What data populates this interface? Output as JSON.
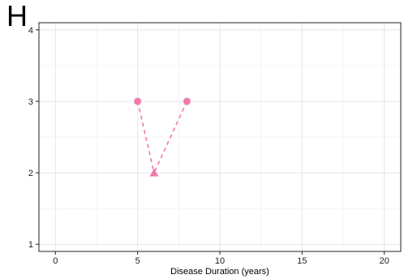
{
  "panel_label": "H",
  "colors": {
    "series": "#F07BAA",
    "grid_major": "#E5E5E5",
    "grid_minor": "#F2F2F2",
    "axis": "#222222"
  },
  "chart_data": {
    "type": "scatter",
    "title": "",
    "xlabel": "Disease Duration (years)",
    "ylabel": "",
    "xlim": [
      -1,
      21
    ],
    "ylim": [
      0.9,
      4.1
    ],
    "x_ticks": [
      0,
      5,
      10,
      15,
      20
    ],
    "y_ticks": [
      1,
      2,
      3,
      4
    ],
    "grid": true,
    "legend": "none",
    "points": [
      {
        "x": 5,
        "y": 3,
        "shape": "circle"
      },
      {
        "x": 6,
        "y": 2,
        "shape": "triangle"
      },
      {
        "x": 8,
        "y": 3,
        "shape": "circle"
      }
    ],
    "segments": [
      {
        "from": [
          5,
          3
        ],
        "to": [
          6,
          2
        ],
        "style": "dashed"
      },
      {
        "from": [
          8,
          3
        ],
        "to": [
          6,
          2
        ],
        "style": "dashed"
      }
    ]
  }
}
